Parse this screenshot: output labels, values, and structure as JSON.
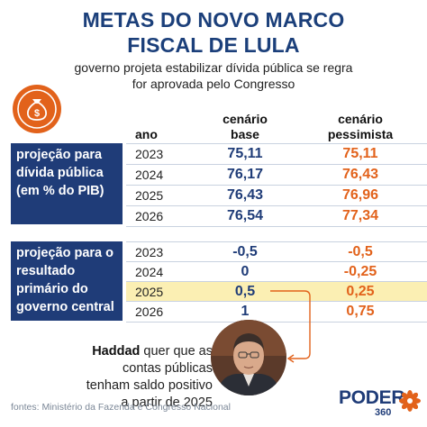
{
  "chart_data": {
    "type": "table",
    "title": "METAS DO NOVO MARCO FISCAL DE LULA",
    "subtitle": "governo projeta estabilizar dívida pública se regra for aprovada pelo Congresso",
    "columns": [
      "ano",
      "cenário base",
      "cenário pessimista"
    ],
    "sections": [
      {
        "label": "projeção para dívida pública (em % do PIB)",
        "rows": [
          {
            "ano": "2023",
            "base": "75,11",
            "pessimista": "75,11"
          },
          {
            "ano": "2024",
            "base": "76,17",
            "pessimista": "76,43"
          },
          {
            "ano": "2025",
            "base": "76,43",
            "pessimista": "76,96"
          },
          {
            "ano": "2026",
            "base": "76,54",
            "pessimista": "77,34"
          }
        ]
      },
      {
        "label": "projeção para o resultado primário do governo central",
        "rows": [
          {
            "ano": "2023",
            "base": "-0,5",
            "pessimista": "-0,5"
          },
          {
            "ano": "2024",
            "base": "0",
            "pessimista": "-0,25"
          },
          {
            "ano": "2025",
            "base": "0,5",
            "pessimista": "0,25",
            "highlight": true
          },
          {
            "ano": "2026",
            "base": "1",
            "pessimista": "0,75"
          }
        ]
      }
    ]
  },
  "header": {
    "title_line1": "METAS DO NOVO MARCO",
    "title_line2": "FISCAL DE LULA",
    "subtitle_line1": "governo projeta estabilizar dívida pública se regra",
    "subtitle_line2": "for aprovada pelo Congresso"
  },
  "table_header": {
    "ano": "ano",
    "base_line1": "cenário",
    "base_line2": "base",
    "pess_line1": "cenário",
    "pess_line2": "pessimista"
  },
  "section1_label": {
    "line1": "projeção para",
    "line2": "dívida pública",
    "line3": "(em % do PIB)"
  },
  "section2_label": {
    "line1": "projeção para o",
    "line2": "resultado",
    "line3": "primário do",
    "line4": "governo central"
  },
  "quote": {
    "name": "Haddad",
    "rest": " quer que as contas públicas tenham saldo positivo a partir de 2025"
  },
  "footer": {
    "source": "fontes: Ministério da Fazenda e Congresso Nacional",
    "logo": "PODER",
    "logo_number": "360"
  },
  "colors": {
    "navy": "#1f3c78",
    "orange": "#e2621b",
    "highlight": "#fbefb3"
  },
  "icons": {
    "money": "money-bag-icon",
    "portrait": "haddad-photo",
    "logo_mark": "poder360-flower-icon"
  }
}
